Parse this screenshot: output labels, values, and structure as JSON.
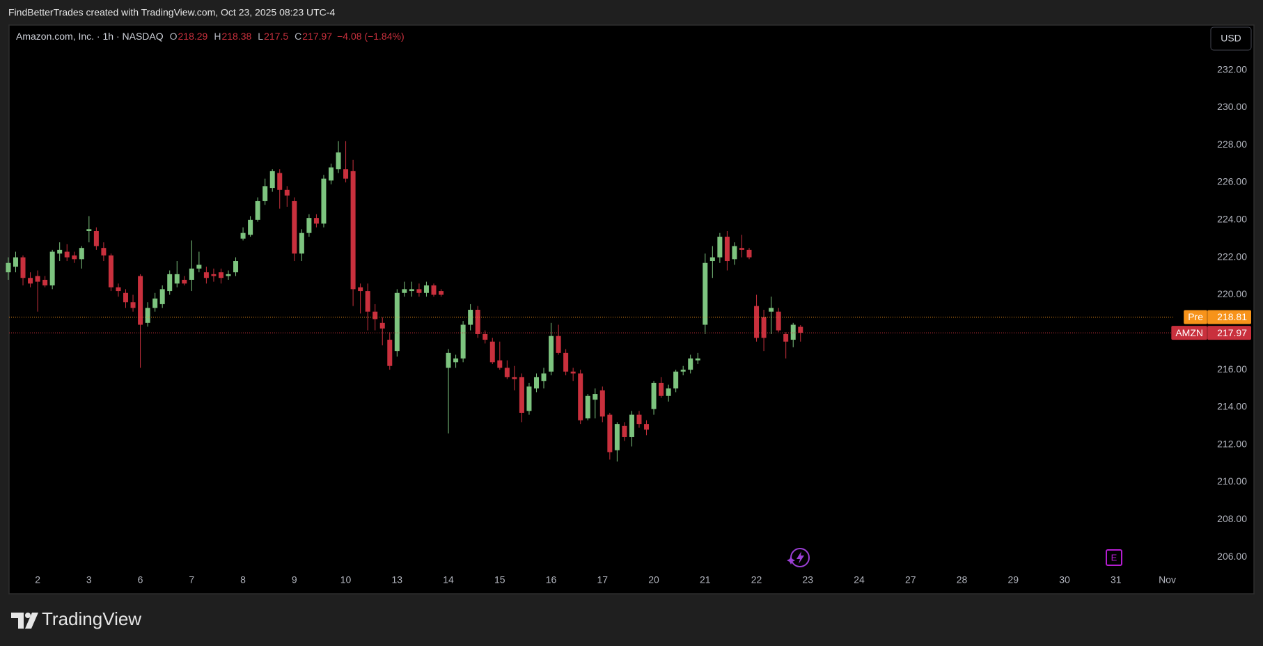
{
  "header": {
    "caption": "FindBetterTrades created with TradingView.com, Oct 23, 2025 08:23 UTC-4"
  },
  "footer": {
    "brand": "TradingView"
  },
  "chart_data": {
    "type": "candlestick",
    "title": "Amazon.com, Inc. · 1h · NASDAQ",
    "ohlc_labels": [
      "O",
      "H",
      "L",
      "C"
    ],
    "change": "−4.08 (−1.84%)",
    "currency": "USD",
    "earnings_marker": "E",
    "up_color": "#7dc47f",
    "down_color": "#c9303d",
    "grid": false,
    "x": [
      -4,
      -3,
      -2,
      -1,
      0,
      1,
      2,
      3,
      4,
      5,
      6,
      7,
      8,
      9,
      10,
      11,
      12,
      13,
      14,
      15,
      16,
      17,
      18,
      19,
      20,
      21,
      22,
      23,
      24,
      25,
      26,
      27,
      28,
      29,
      30,
      31,
      32,
      33,
      34,
      35,
      36,
      37,
      38,
      39,
      40,
      41,
      42,
      43,
      44,
      45,
      46,
      47,
      48,
      49,
      50,
      51,
      52,
      53,
      54,
      55,
      56,
      57,
      58,
      59,
      60,
      61,
      62,
      63,
      64,
      65,
      66,
      67,
      68,
      69,
      70,
      71,
      72,
      73,
      74,
      75,
      76,
      77,
      78,
      79,
      80,
      81,
      82,
      83,
      84,
      85,
      86,
      87,
      88,
      89,
      90,
      91,
      92,
      93,
      94,
      95,
      96,
      97,
      98,
      99,
      100,
      101,
      102,
      103,
      104
    ],
    "open": [
      221.2,
      221.5,
      222,
      220.9,
      221,
      220.8,
      220.5,
      222.2,
      222.3,
      222.1,
      221.9,
      223.4,
      223.4,
      222.5,
      222.1,
      220.4,
      220.1,
      219.6,
      221,
      218.5,
      219.3,
      219.5,
      220.2,
      220.6,
      220.8,
      220.8,
      221.4,
      221.2,
      221.1,
      221.2,
      221,
      221.2,
      223,
      223.2,
      224,
      225,
      225.7,
      226.5,
      225.6,
      225,
      222.2,
      223.3,
      224.1,
      223.8,
      226.1,
      226.7,
      226.7,
      226.6,
      220.4,
      220.2,
      219.1,
      218.5,
      217.6,
      217,
      220.1,
      220.2,
      220.3,
      220.1,
      220.5,
      220.2,
      216.1,
      216.4,
      216.6,
      218.4,
      219.2,
      217.9,
      217.5,
      216.5,
      216.1,
      215.6,
      215.6,
      213.8,
      215,
      215.4,
      215.9,
      217.8,
      216.9,
      215.9,
      215.8,
      213.4,
      214.4,
      214.9,
      213.6,
      211.7,
      213,
      212.4,
      213.6,
      213.1,
      213.9,
      215.3,
      214.6,
      215,
      215.9,
      216,
      216.5,
      218.4,
      221.8,
      222,
      223.1,
      221.9,
      222.5,
      222.4,
      219.4,
      218.8,
      219.1,
      219.1,
      217.9,
      217.6,
      218.29
    ],
    "high": [
      222,
      222.3,
      222.1,
      221.2,
      221.3,
      221,
      222.4,
      222.8,
      222.7,
      222.3,
      222.6,
      224.2,
      223.6,
      222.8,
      222.2,
      220.6,
      220.3,
      220,
      221.1,
      219.6,
      220.1,
      220.5,
      221.3,
      221.8,
      221,
      222.9,
      222.3,
      221.5,
      221.4,
      221.4,
      221.3,
      222,
      223.6,
      224.2,
      225.2,
      226.2,
      226.7,
      226.7,
      225.8,
      225.2,
      223.5,
      224.3,
      224.3,
      226.4,
      227,
      228.2,
      228.2,
      227.2,
      220.6,
      220.6,
      219.5,
      218.8,
      218,
      220.3,
      220.7,
      220.7,
      220.6,
      220.7,
      220.6,
      220.3,
      217.1,
      216.8,
      218.6,
      219.5,
      219.4,
      218.1,
      217.7,
      217.5,
      216.5,
      216.2,
      215.8,
      215.3,
      215.8,
      216.1,
      218.5,
      218.4,
      217.1,
      216.1,
      216,
      214.7,
      215,
      215.1,
      213.7,
      213.2,
      213.2,
      213.8,
      213.8,
      213.3,
      215.4,
      215.6,
      215.2,
      216,
      216.2,
      216.8,
      216.9,
      222.2,
      222.6,
      223.3,
      223.4,
      222.8,
      223.2,
      222.5,
      220,
      219.2,
      219.9,
      219.3,
      218,
      218.5,
      218.38
    ],
    "low": [
      220.8,
      221.2,
      220.5,
      220.4,
      219.1,
      220.4,
      220.3,
      221.8,
      221.8,
      221.7,
      221.4,
      222.8,
      222.4,
      221.8,
      220.2,
      219.9,
      219.3,
      219.1,
      216.1,
      218.3,
      219.1,
      219.3,
      220,
      220.4,
      220.5,
      220.2,
      221.2,
      220.6,
      220.7,
      220.6,
      220.8,
      221,
      222.9,
      223.1,
      223.9,
      224.8,
      225.5,
      224.6,
      224.7,
      221.8,
      221.8,
      223.1,
      223.6,
      223.6,
      225.9,
      226.5,
      226,
      219.4,
      219,
      218.1,
      218.1,
      217.3,
      216,
      216.7,
      219.9,
      219.9,
      219.9,
      219.9,
      219.9,
      219.9,
      212.6,
      216.1,
      216.4,
      218.1,
      217.7,
      217.4,
      216.3,
      216,
      215.5,
      214.9,
      213.2,
      213.6,
      214.8,
      215,
      215.7,
      216.8,
      215.7,
      215.4,
      213.1,
      213.3,
      213.4,
      213.2,
      211.2,
      211.1,
      212.2,
      211.9,
      212.9,
      212.5,
      213.6,
      214.5,
      214.3,
      214.8,
      215.7,
      215.8,
      216.3,
      217.9,
      220.9,
      221.7,
      221.3,
      221.6,
      222,
      221.9,
      217.5,
      217,
      217.9,
      218,
      216.6,
      217.2,
      217.5
    ],
    "close": [
      221.7,
      222,
      220.9,
      220.6,
      220.7,
      220.5,
      222.3,
      222.4,
      222,
      221.9,
      222.5,
      223.5,
      222.6,
      222.1,
      220.4,
      220.2,
      219.6,
      219.3,
      218.4,
      219.3,
      219.8,
      220.3,
      221.1,
      221.1,
      220.6,
      221.4,
      221.6,
      220.9,
      221,
      220.9,
      221.1,
      221.8,
      223.3,
      224,
      225,
      225.8,
      226.6,
      225.6,
      225.3,
      222.2,
      223.3,
      224.1,
      223.8,
      226.2,
      226.8,
      227.6,
      226.2,
      220.3,
      220.2,
      219.1,
      218.7,
      218.2,
      216.2,
      220.1,
      220.3,
      220.3,
      220.1,
      220.5,
      220,
      220,
      216.9,
      216.6,
      218.4,
      219.2,
      217.9,
      217.6,
      216.4,
      216.1,
      215.6,
      215.5,
      213.7,
      215.1,
      215.6,
      215.8,
      217.8,
      216.9,
      215.9,
      215.8,
      213.3,
      214.6,
      214.7,
      213.5,
      211.6,
      213.1,
      212.4,
      213.6,
      213.1,
      212.8,
      215.3,
      214.6,
      215,
      215.9,
      216,
      216.6,
      216.6,
      221.7,
      222,
      223.1,
      221.8,
      222.6,
      222.4,
      222,
      217.7,
      217.7,
      219.3,
      218.1,
      217.5,
      218.4,
      217.97
    ],
    "xlim": [
      -3.9,
      154.9
    ],
    "xticks": [
      {
        "value": 0,
        "label": "2"
      },
      {
        "value": 7,
        "label": "3"
      },
      {
        "value": 14,
        "label": "6"
      },
      {
        "value": 21,
        "label": "7"
      },
      {
        "value": 28,
        "label": "8"
      },
      {
        "value": 35,
        "label": "9"
      },
      {
        "value": 42,
        "label": "10"
      },
      {
        "value": 49,
        "label": "13"
      },
      {
        "value": 56,
        "label": "14"
      },
      {
        "value": 63,
        "label": "15"
      },
      {
        "value": 70,
        "label": "16"
      },
      {
        "value": 77,
        "label": "17"
      },
      {
        "value": 84,
        "label": "20"
      },
      {
        "value": 91,
        "label": "21"
      },
      {
        "value": 98,
        "label": "22"
      },
      {
        "value": 105,
        "label": "23"
      },
      {
        "value": 112,
        "label": "24"
      },
      {
        "value": 119,
        "label": "27"
      },
      {
        "value": 126,
        "label": "28"
      },
      {
        "value": 133,
        "label": "29"
      },
      {
        "value": 140,
        "label": "30"
      },
      {
        "value": 147,
        "label": "31"
      },
      {
        "value": 154,
        "label": "Nov"
      }
    ],
    "ylim": [
      205.3,
      234.4
    ],
    "yticks": [
      {
        "value": 206,
        "label": "206.00"
      },
      {
        "value": 208,
        "label": "208.00"
      },
      {
        "value": 210,
        "label": "210.00"
      },
      {
        "value": 212,
        "label": "212.00"
      },
      {
        "value": 214,
        "label": "214.00"
      },
      {
        "value": 216,
        "label": "216.00"
      },
      {
        "value": 218,
        "label": "218.00"
      },
      {
        "value": 220,
        "label": "220.00"
      },
      {
        "value": 222,
        "label": "222.00"
      },
      {
        "value": 224,
        "label": "224.00"
      },
      {
        "value": 226,
        "label": "226.00"
      },
      {
        "value": 228,
        "label": "228.00"
      },
      {
        "value": 230,
        "label": "230.00"
      },
      {
        "value": 232,
        "label": "232.00"
      }
    ],
    "price_lines": [
      {
        "name": "Pre",
        "value": 218.81,
        "color": "#f7931a"
      },
      {
        "name": "AMZN",
        "value": 217.97,
        "color": "#c9303d"
      }
    ]
  }
}
